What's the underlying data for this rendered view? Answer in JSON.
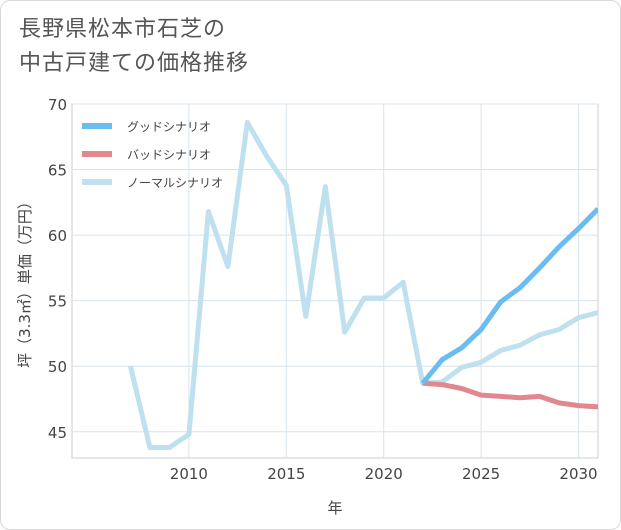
{
  "title_lines": [
    "長野県松本市石芝の",
    "中古戸建ての価格推移"
  ],
  "chart_data": {
    "type": "line",
    "xlabel": "年",
    "ylabel": "坪（3.3㎡）単価（万円）",
    "xlim": [
      2004.0,
      2031.0
    ],
    "ylim": [
      43.0,
      70.0
    ],
    "x_ticks": [
      2010,
      2015,
      2020,
      2025,
      2030
    ],
    "y_ticks": [
      45,
      50,
      55,
      60,
      65,
      70
    ],
    "grid": true,
    "legend_position": "top-left",
    "series": [
      {
        "name": "グッドシナリオ",
        "color": "#6bbcef",
        "x": [
          2022,
          2023,
          2024,
          2025,
          2026,
          2027,
          2028,
          2029,
          2030,
          2031
        ],
        "values": [
          48.7,
          50.5,
          51.4,
          52.8,
          54.9,
          56.0,
          57.5,
          59.1,
          60.5,
          62.0
        ]
      },
      {
        "name": "バッドシナリオ",
        "color": "#e0888e",
        "x": [
          2022,
          2023,
          2024,
          2025,
          2026,
          2027,
          2028,
          2029,
          2030,
          2031
        ],
        "values": [
          48.7,
          48.6,
          48.3,
          47.8,
          47.7,
          47.6,
          47.7,
          47.2,
          47.0,
          46.9
        ]
      },
      {
        "name": "ノーマルシナリオ",
        "color": "#bfe0ef",
        "x": [
          2007,
          2008,
          2009,
          2010,
          2011,
          2012,
          2013,
          2014,
          2015,
          2016,
          2017,
          2018,
          2019,
          2020,
          2021,
          2022,
          2023,
          2024,
          2025,
          2026,
          2027,
          2028,
          2029,
          2030,
          2031
        ],
        "values": [
          50.0,
          43.8,
          43.8,
          44.8,
          61.8,
          57.6,
          68.6,
          66.0,
          63.8,
          53.8,
          63.7,
          52.6,
          55.2,
          55.2,
          56.4,
          48.7,
          48.8,
          49.9,
          50.3,
          51.2,
          51.6,
          52.4,
          52.8,
          53.7,
          54.1
        ]
      }
    ]
  }
}
